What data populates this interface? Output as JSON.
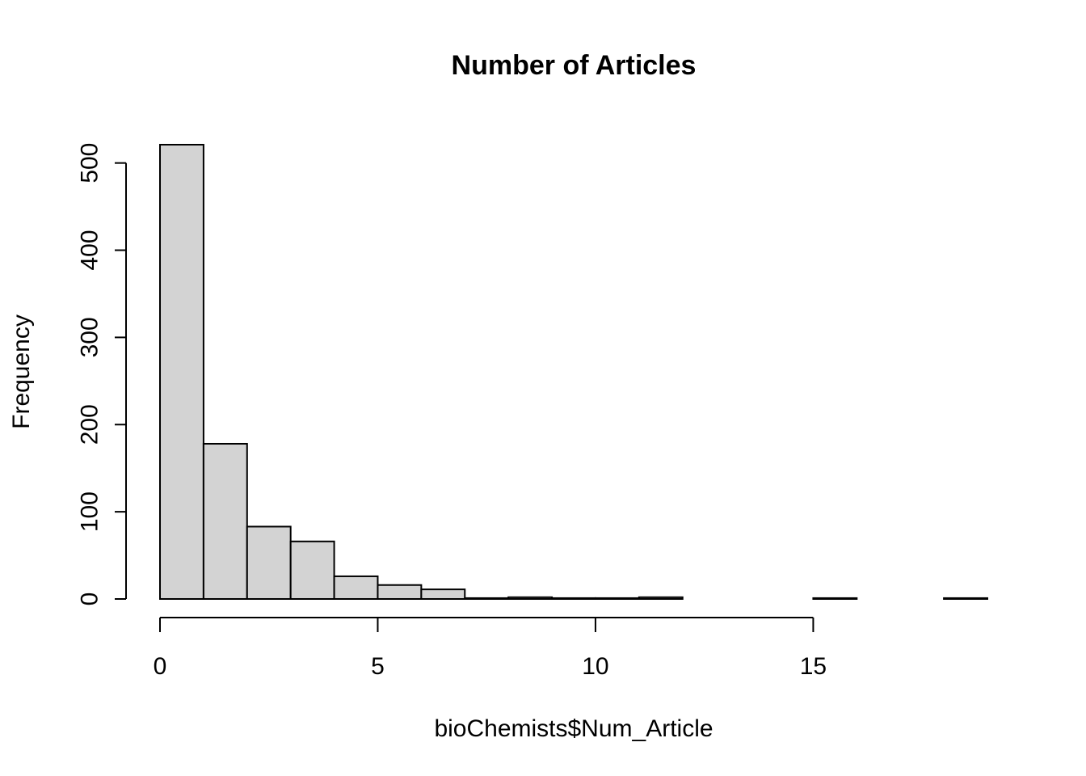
{
  "chart_data": {
    "type": "bar",
    "title": "Number of Articles",
    "xlabel": "bioChemists$Num_Article",
    "ylabel": "Frequency",
    "bin_edges": [
      0,
      1,
      2,
      3,
      4,
      5,
      6,
      7,
      8,
      9,
      10,
      11,
      12,
      13,
      14,
      15,
      16,
      17,
      18,
      19
    ],
    "values": [
      521,
      178,
      83,
      66,
      26,
      16,
      11,
      1,
      2,
      1,
      1,
      2,
      0,
      0,
      0,
      1,
      0,
      0,
      1
    ],
    "xlim": [
      0,
      19
    ],
    "ylim": [
      0,
      521
    ],
    "x_ticks": [
      0,
      5,
      10,
      15
    ],
    "y_ticks": [
      0,
      100,
      200,
      300,
      400,
      500
    ],
    "x_tick_labels": [
      "0",
      "5",
      "10",
      "15"
    ],
    "y_tick_labels": [
      "0",
      "100",
      "200",
      "300",
      "400",
      "500"
    ],
    "grid": false,
    "bar_color": "#d3d3d3",
    "edge_color": "#000000"
  }
}
